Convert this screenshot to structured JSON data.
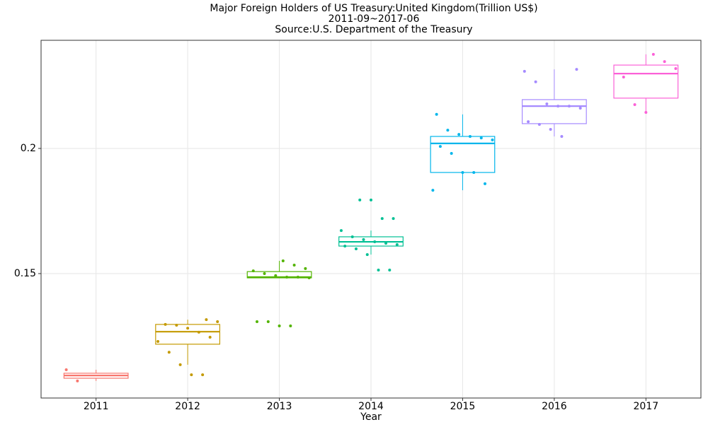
{
  "chart_data": {
    "type": "box",
    "title": "Major Foreign Holders of US Treasury:United Kingdom(Trillion US$)",
    "subtitle": "2011-09~2017-06",
    "source": "Source:U.S. Department of the Treasury",
    "x_label": "Year",
    "categories": [
      "2011",
      "2012",
      "2013",
      "2014",
      "2015",
      "2016",
      "2017"
    ],
    "colors": [
      "#F8766D",
      "#C49A00",
      "#53B400",
      "#00C094",
      "#00B6EB",
      "#A58AFF",
      "#FB61D7"
    ],
    "boxes": [
      {
        "min": 0.1071,
        "q1": 0.1082,
        "median": 0.1093,
        "q3": 0.1102,
        "max": 0.1116,
        "points": [
          0.1116,
          0.1071
        ]
      },
      {
        "min": 0.1136,
        "q1": 0.1218,
        "median": 0.1268,
        "q3": 0.1297,
        "max": 0.1316,
        "points": [
          0.1316,
          0.1308,
          0.1297,
          0.1294,
          0.1282,
          0.1266,
          0.1246,
          0.1229,
          0.1186,
          0.1136,
          0.1096,
          0.1096
        ]
      },
      {
        "min": 0.1483,
        "q1": 0.1483,
        "median": 0.1486,
        "q3": 0.1508,
        "max": 0.1551,
        "points": [
          0.1551,
          0.1534,
          0.152,
          0.1511,
          0.15,
          0.1492,
          0.1486,
          0.1486,
          0.1483,
          0.1308,
          0.1308,
          0.1291,
          0.1291
        ]
      },
      {
        "min": 0.1576,
        "q1": 0.161,
        "median": 0.1627,
        "q3": 0.1647,
        "max": 0.1672,
        "points": [
          0.1794,
          0.1794,
          0.172,
          0.172,
          0.1672,
          0.1647,
          0.1636,
          0.1627,
          0.1621,
          0.1616,
          0.161,
          0.1599,
          0.1576,
          0.1514,
          0.1514
        ]
      },
      {
        "min": 0.1833,
        "q1": 0.1904,
        "median": 0.202,
        "q3": 0.2048,
        "max": 0.2136,
        "points": [
          0.2136,
          0.2073,
          0.2056,
          0.2048,
          0.2042,
          0.2034,
          0.2008,
          0.198,
          0.1904,
          0.1904,
          0.1859,
          0.1833
        ]
      },
      {
        "min": 0.2048,
        "q1": 0.2099,
        "median": 0.2169,
        "q3": 0.2195,
        "max": 0.2316,
        "points": [
          0.2316,
          0.2308,
          0.2266,
          0.2178,
          0.2169,
          0.2169,
          0.2161,
          0.2107,
          0.2096,
          0.2076,
          0.2048
        ]
      },
      {
        "min": 0.2144,
        "q1": 0.2201,
        "median": 0.2299,
        "q3": 0.2333,
        "max": 0.2376,
        "points": [
          0.2376,
          0.2347,
          0.2319,
          0.2285,
          0.2175,
          0.2144
        ]
      }
    ],
    "ylim": [
      0.1003,
      0.2432
    ],
    "yticks": [
      0.15,
      0.2
    ],
    "grid": true
  }
}
